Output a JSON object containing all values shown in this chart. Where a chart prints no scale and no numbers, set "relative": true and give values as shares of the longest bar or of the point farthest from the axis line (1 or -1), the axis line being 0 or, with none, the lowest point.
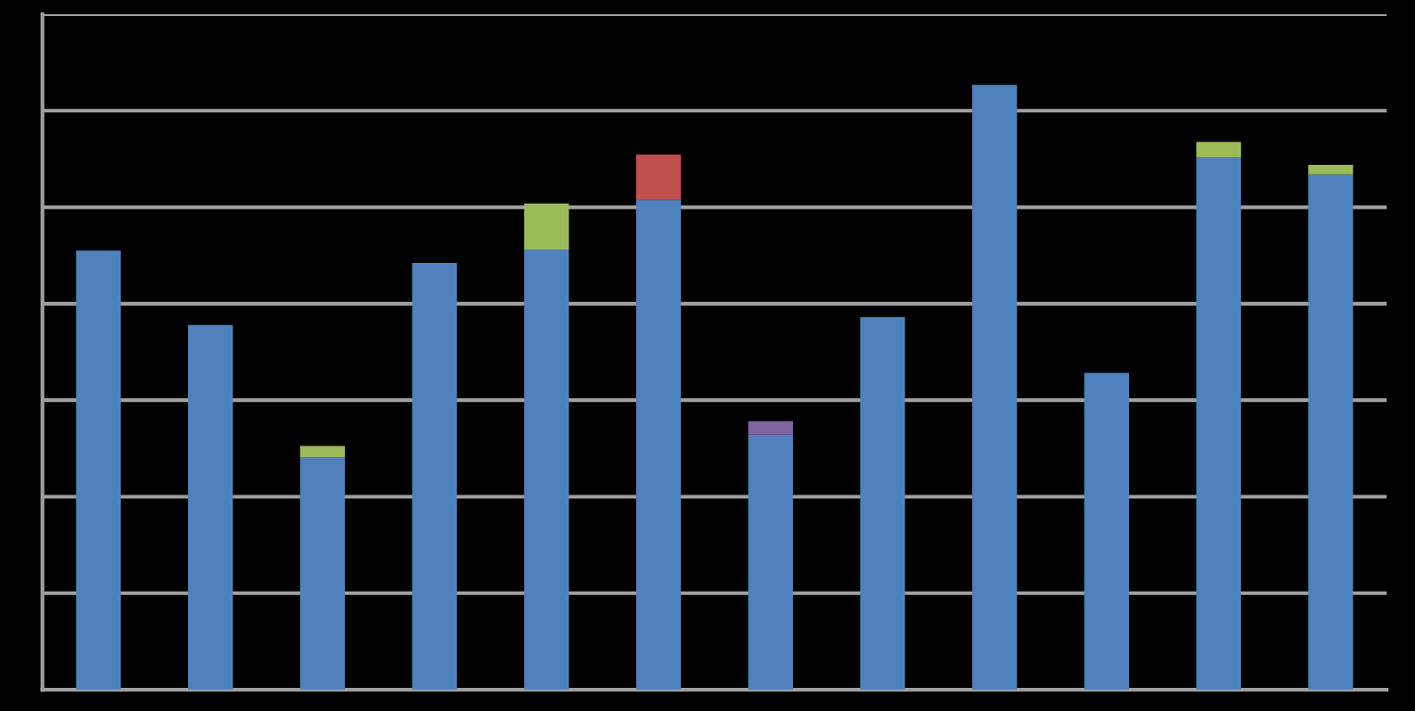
{
  "chart_data": {
    "type": "bar",
    "stacked": true,
    "relative": true,
    "grid": "y",
    "legend": false,
    "categories": [
      null,
      null,
      null,
      null,
      null,
      null,
      null,
      null,
      null,
      null,
      null,
      null
    ],
    "series": [
      {
        "color": "#4f81bd",
        "values": [
          0.726,
          0.603,
          0.384,
          0.706,
          0.728,
          0.81,
          0.422,
          0.616,
          1,
          0.524,
          0.88,
          0.852
        ]
      },
      {
        "color": "#9bbb59",
        "values": [
          0,
          0,
          0.019,
          0,
          0.076,
          0,
          0,
          0,
          0,
          0,
          0.026,
          0.016
        ]
      },
      {
        "color": "#c0504d",
        "values": [
          0,
          0,
          0,
          0,
          0,
          0.075,
          0,
          0,
          0,
          0,
          0,
          0
        ]
      },
      {
        "color": "#8064a2",
        "values": [
          0,
          0,
          0,
          0,
          0,
          0,
          0.022,
          0,
          0,
          0,
          0,
          0
        ]
      }
    ]
  }
}
